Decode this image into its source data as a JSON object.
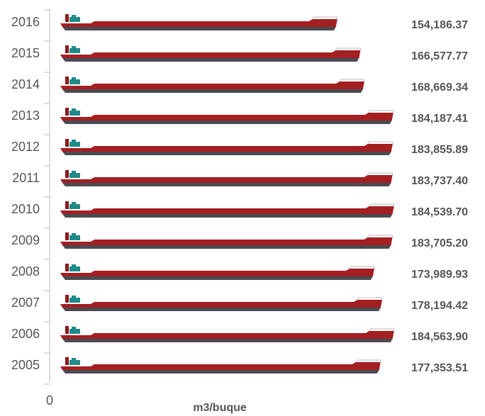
{
  "chart_data": {
    "type": "ship-bar",
    "orientation": "horizontal",
    "x_axis_label": "m3/buque",
    "categories": [
      "2016",
      "2015",
      "2014",
      "2013",
      "2012",
      "2011",
      "2010",
      "2009",
      "2008",
      "2007",
      "2006",
      "2005"
    ],
    "values": [
      154186.37,
      166577.77,
      168669.34,
      184187.41,
      183855.89,
      183737.4,
      184539.7,
      183705.2,
      173989.93,
      178194.42,
      184563.9,
      177353.51
    ],
    "value_labels": [
      "154,186.37",
      "166,577.77",
      "168,669.34",
      "184,187.41",
      "183,855.89",
      "183,737.40",
      "184,539.70",
      "183,705.20",
      "173,989.93",
      "178,194.42",
      "184,563.90",
      "177,353.51"
    ],
    "color": "#a31f22",
    "xlim": [
      0,
      190000
    ],
    "xticks": [
      0
    ]
  }
}
